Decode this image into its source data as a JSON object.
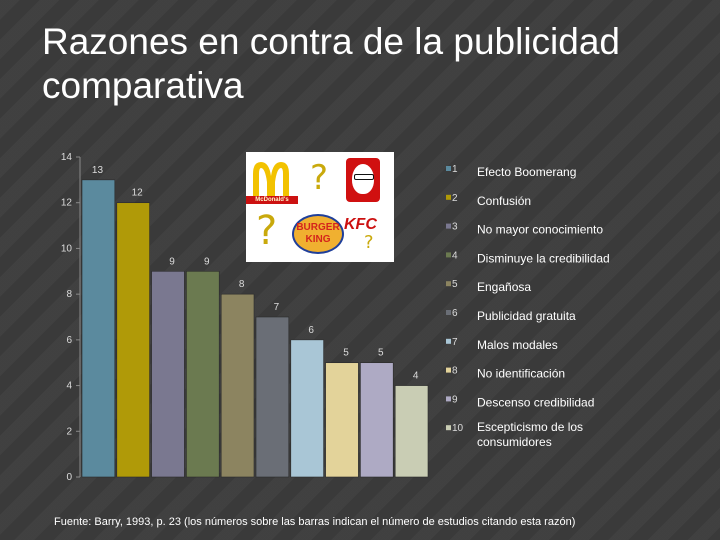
{
  "slide": {
    "title": "Razones en contra de la publicidad comparativa",
    "footer": "Fuente: Barry, 1993, p. 23 (los números sobre las barras indican el número de estudios citando esta razón)"
  },
  "logos": {
    "mcdonalds_wordmark": "McDonald's",
    "burger_king_top": "BURGER",
    "burger_king_bottom": "KING",
    "kfc_wordmark": "KFC",
    "question_marks": [
      "?",
      "?",
      "?"
    ],
    "accent_color": "#c9a90c"
  },
  "chart_data": {
    "type": "bar",
    "categories": [
      "1",
      "2",
      "3",
      "4",
      "5",
      "6",
      "7",
      "8",
      "9",
      "10"
    ],
    "values": [
      13,
      12,
      9,
      9,
      8,
      7,
      6,
      5,
      5,
      4
    ],
    "ylim": [
      0,
      14
    ],
    "yticks": [
      0,
      2,
      4,
      6,
      8,
      10,
      12,
      14
    ],
    "grid": false,
    "legend_position": "right",
    "colors": [
      "#5b8a9e",
      "#b09a08",
      "#7a7890",
      "#6b7a50",
      "#8c8460",
      "#6a6e76",
      "#a9c6d6",
      "#e3d39a",
      "#aeaac4",
      "#c9cdb4"
    ],
    "legend": [
      {
        "num": "1",
        "label": "Efecto Boomerang"
      },
      {
        "num": "2",
        "label": "Confusión"
      },
      {
        "num": "3",
        "label": "No mayor conocimiento"
      },
      {
        "num": "4",
        "label": "Disminuye la credibilidad"
      },
      {
        "num": "5",
        "label": "Engañosa"
      },
      {
        "num": "6",
        "label": "Publicidad  gratuita"
      },
      {
        "num": "7",
        "label": "Malos modales"
      },
      {
        "num": "8",
        "label": "No identificación"
      },
      {
        "num": "9",
        "label": "Descenso credibilidad"
      },
      {
        "num": "10",
        "label": "Escepticismo de los consumidores"
      }
    ]
  }
}
